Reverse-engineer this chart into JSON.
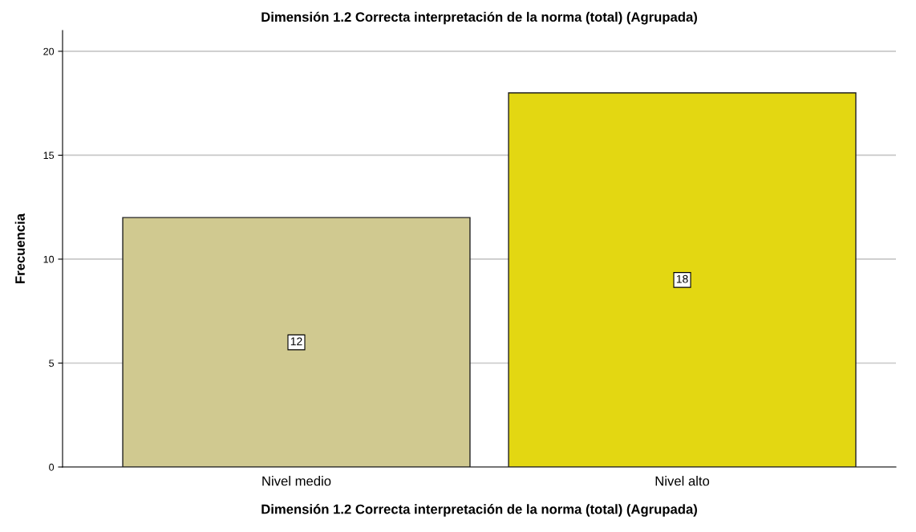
{
  "chart_data": {
    "type": "bar",
    "title": "Dimensión 1.2 Correcta interpretación de la norma (total) (Agrupada)",
    "xlabel": "Dimensión 1.2 Correcta interpretación de la norma (total) (Agrupada)",
    "ylabel": "Frecuencia",
    "categories": [
      "Nivel medio",
      "Nivel alto"
    ],
    "values": [
      12,
      18
    ],
    "colors": [
      "#d0c990",
      "#e3d712"
    ],
    "ylim": [
      0,
      21
    ],
    "yticks": [
      0,
      5,
      10,
      15,
      20
    ],
    "grid": "y",
    "data_labels": true
  }
}
